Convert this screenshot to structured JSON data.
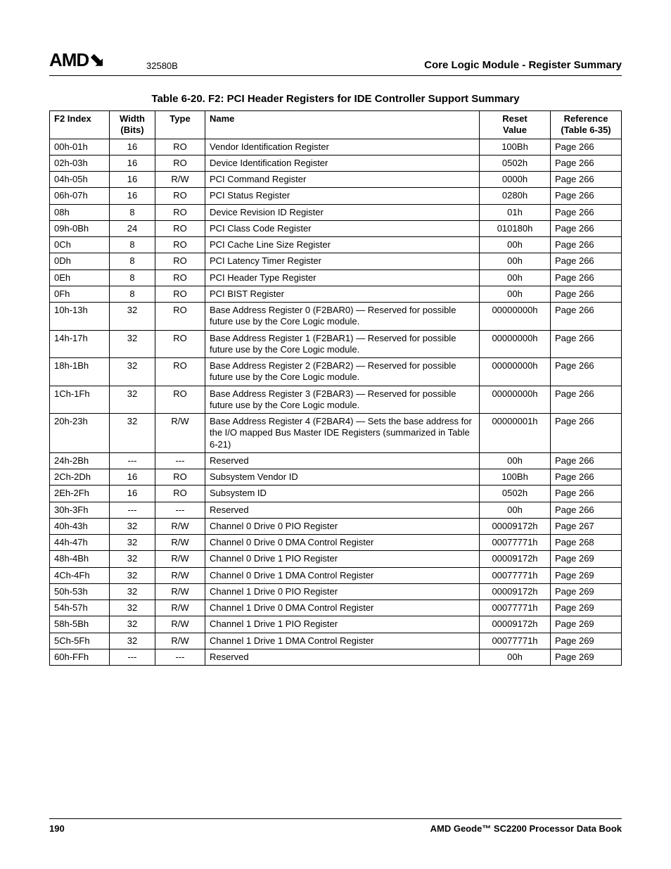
{
  "header": {
    "logo_text": "AMD",
    "logo_glyph": "⬊",
    "doc_number": "32580B",
    "section_title": "Core Logic Module - Register Summary"
  },
  "table": {
    "caption": "Table 6-20.  F2: PCI Header Registers for IDE Controller Support Summary",
    "columns": {
      "index": "F2 Index",
      "width_top": "Width",
      "width_bottom": "(Bits)",
      "type": "Type",
      "name": "Name",
      "reset_top": "Reset",
      "reset_bottom": "Value",
      "ref_top": "Reference",
      "ref_bottom": "(Table 6-35)"
    },
    "rows": [
      {
        "index": "00h-01h",
        "width": "16",
        "type": "RO",
        "name": "Vendor Identification Register",
        "reset": "100Bh",
        "ref": "Page 266"
      },
      {
        "index": "02h-03h",
        "width": "16",
        "type": "RO",
        "name": "Device Identification Register",
        "reset": "0502h",
        "ref": "Page 266"
      },
      {
        "index": "04h-05h",
        "width": "16",
        "type": "R/W",
        "name": "PCI Command Register",
        "reset": "0000h",
        "ref": "Page 266"
      },
      {
        "index": "06h-07h",
        "width": "16",
        "type": "RO",
        "name": "PCI Status Register",
        "reset": "0280h",
        "ref": "Page 266"
      },
      {
        "index": "08h",
        "width": "8",
        "type": "RO",
        "name": "Device Revision ID Register",
        "reset": "01h",
        "ref": "Page 266"
      },
      {
        "index": "09h-0Bh",
        "width": "24",
        "type": "RO",
        "name": "PCI Class Code Register",
        "reset": "010180h",
        "ref": "Page 266"
      },
      {
        "index": "0Ch",
        "width": "8",
        "type": "RO",
        "name": "PCI Cache Line Size Register",
        "reset": "00h",
        "ref": "Page 266"
      },
      {
        "index": "0Dh",
        "width": "8",
        "type": "RO",
        "name": "PCI Latency Timer Register",
        "reset": "00h",
        "ref": "Page 266"
      },
      {
        "index": "0Eh",
        "width": "8",
        "type": "RO",
        "name": "PCI Header Type Register",
        "reset": "00h",
        "ref": "Page 266"
      },
      {
        "index": "0Fh",
        "width": "8",
        "type": "RO",
        "name": "PCI BIST Register",
        "reset": "00h",
        "ref": "Page 266"
      },
      {
        "index": "10h-13h",
        "width": "32",
        "type": "RO",
        "name": "Base Address Register 0 (F2BAR0) — Reserved for possible future use by the Core Logic module.",
        "reset": "00000000h",
        "ref": "Page 266"
      },
      {
        "index": "14h-17h",
        "width": "32",
        "type": "RO",
        "name": "Base Address Register 1 (F2BAR1) — Reserved for possible future use by the Core Logic module.",
        "reset": "00000000h",
        "ref": "Page 266"
      },
      {
        "index": "18h-1Bh",
        "width": "32",
        "type": "RO",
        "name": "Base Address Register 2 (F2BAR2) — Reserved for possible future use by the Core Logic module.",
        "reset": "00000000h",
        "ref": "Page 266"
      },
      {
        "index": "1Ch-1Fh",
        "width": "32",
        "type": "RO",
        "name": "Base Address Register 3 (F2BAR3) — Reserved for possible future use by the Core Logic module.",
        "reset": "00000000h",
        "ref": "Page 266"
      },
      {
        "index": "20h-23h",
        "width": "32",
        "type": "R/W",
        "name": "Base Address Register 4 (F2BAR4) — Sets the base address for the I/O mapped Bus Master IDE Registers (summarized in Table 6-21)",
        "reset": "00000001h",
        "ref": "Page 266"
      },
      {
        "index": "24h-2Bh",
        "width": "---",
        "type": "---",
        "name": "Reserved",
        "reset": "00h",
        "ref": "Page 266"
      },
      {
        "index": "2Ch-2Dh",
        "width": "16",
        "type": "RO",
        "name": "Subsystem Vendor ID",
        "reset": "100Bh",
        "ref": "Page 266"
      },
      {
        "index": "2Eh-2Fh",
        "width": "16",
        "type": "RO",
        "name": "Subsystem ID",
        "reset": "0502h",
        "ref": "Page 266"
      },
      {
        "index": "30h-3Fh",
        "width": "---",
        "type": "---",
        "name": "Reserved",
        "reset": "00h",
        "ref": "Page 266"
      },
      {
        "index": "40h-43h",
        "width": "32",
        "type": "R/W",
        "name": "Channel 0 Drive 0 PIO Register",
        "reset": "00009172h",
        "ref": "Page 267"
      },
      {
        "index": "44h-47h",
        "width": "32",
        "type": "R/W",
        "name": "Channel 0 Drive 0 DMA Control Register",
        "reset": "00077771h",
        "ref": "Page 268"
      },
      {
        "index": "48h-4Bh",
        "width": "32",
        "type": "R/W",
        "name": "Channel 0 Drive 1 PIO Register",
        "reset": "00009172h",
        "ref": "Page 269"
      },
      {
        "index": "4Ch-4Fh",
        "width": "32",
        "type": "R/W",
        "name": "Channel 0 Drive 1 DMA Control Register",
        "reset": "00077771h",
        "ref": "Page 269"
      },
      {
        "index": "50h-53h",
        "width": "32",
        "type": "R/W",
        "name": "Channel 1 Drive 0 PIO Register",
        "reset": "00009172h",
        "ref": "Page 269"
      },
      {
        "index": "54h-57h",
        "width": "32",
        "type": "R/W",
        "name": "Channel 1 Drive 0 DMA Control Register",
        "reset": "00077771h",
        "ref": "Page 269"
      },
      {
        "index": "58h-5Bh",
        "width": "32",
        "type": "R/W",
        "name": "Channel 1 Drive 1 PIO Register",
        "reset": "00009172h",
        "ref": "Page 269"
      },
      {
        "index": "5Ch-5Fh",
        "width": "32",
        "type": "R/W",
        "name": "Channel 1 Drive 1 DMA Control Register",
        "reset": "00077771h",
        "ref": "Page 269"
      },
      {
        "index": "60h-FFh",
        "width": "---",
        "type": "---",
        "name": "Reserved",
        "reset": "00h",
        "ref": "Page 269"
      }
    ]
  },
  "footer": {
    "page_number": "190",
    "book_title": "AMD Geode™ SC2200  Processor Data Book"
  }
}
